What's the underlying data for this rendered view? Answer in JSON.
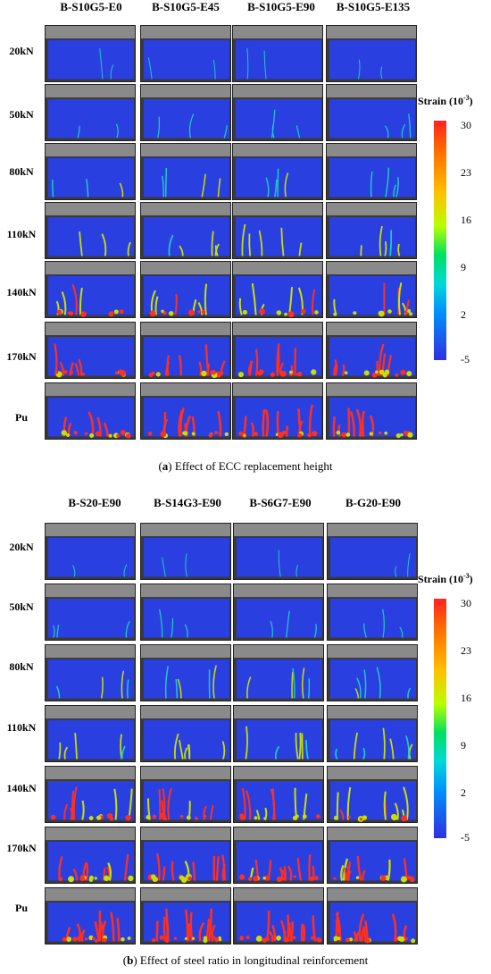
{
  "panel_a": {
    "columns": [
      "B-S10G5-E0",
      "B-S10G5-E45",
      "B-S10G5-E90",
      "B-S10G5-E135"
    ],
    "rows": [
      "20kN",
      "50kN",
      "80kN",
      "110kN",
      "140kN",
      "170kN",
      "Pu"
    ],
    "colorbar": {
      "title": "Strain (10",
      "title_sup": "-3",
      "title_end": ")",
      "ticks": [
        "30",
        "23",
        "16",
        "9",
        "2",
        "-5"
      ]
    },
    "caption_letter": "a",
    "caption_text": "Effect of ECC replacement height"
  },
  "panel_b": {
    "columns": [
      "B-S20-E90",
      "B-S14G3-E90",
      "B-S6G7-E90",
      "B-G20-E90"
    ],
    "rows": [
      "20kN",
      "50kN",
      "80kN",
      "110kN",
      "140kN",
      "170kN",
      "Pu"
    ],
    "colorbar": {
      "title": "Strain (10",
      "title_sup": "-3",
      "title_end": ")",
      "ticks": [
        "30",
        "23",
        "16",
        "9",
        "2",
        "-5"
      ]
    },
    "caption_letter": "b",
    "caption_text": "Effect of steel ratio in longitudinal reinforcement"
  },
  "colors": {
    "field": "#2a3fe0",
    "photo": "#3a3a3a",
    "crack_low": "#20c8c8",
    "crack_mid": "#c8e000",
    "crack_high": "#ff3020"
  }
}
